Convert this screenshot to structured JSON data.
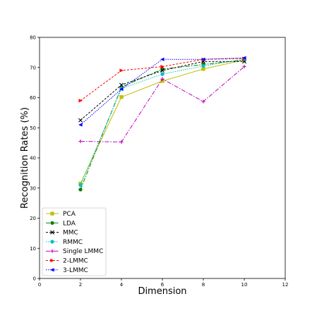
{
  "chart_data": {
    "type": "line",
    "title": "",
    "xlabel": "Dimension",
    "ylabel": "Recognition Rates (%)",
    "xlim": [
      0,
      12
    ],
    "ylim": [
      0,
      80
    ],
    "xticks": [
      0,
      2,
      4,
      6,
      8,
      10,
      12
    ],
    "yticks": [
      0,
      10,
      20,
      30,
      40,
      50,
      60,
      70,
      80
    ],
    "grid": false,
    "legend_position": "lower-left",
    "x": [
      2,
      4,
      6,
      8,
      10
    ],
    "series": [
      {
        "name": "PCA",
        "values": [
          31.5,
          60.2,
          65.5,
          69.5,
          72.5
        ],
        "color": "#bfbf00",
        "dash": "",
        "marker": "square"
      },
      {
        "name": "LDA",
        "values": [
          29.5,
          63.5,
          69.5,
          71.0,
          72.5
        ],
        "color": "#008000",
        "dash": "6,2,1.5,2",
        "marker": "circle"
      },
      {
        "name": "MMC",
        "values": [
          52.5,
          64.2,
          69.0,
          72.0,
          72.0
        ],
        "color": "#000000",
        "dash": "3,2",
        "marker": "x"
      },
      {
        "name": "RMMC",
        "values": [
          31.0,
          63.0,
          67.8,
          70.5,
          72.8
        ],
        "color": "#00bfbf",
        "dash": "1.5,1.5",
        "marker": "circle"
      },
      {
        "name": "Single LMMC",
        "values": [
          45.5,
          45.3,
          66.2,
          58.7,
          70.3
        ],
        "color": "#bf00bf",
        "dash": "6,2,1.5,2",
        "marker": "plus"
      },
      {
        "name": "2-LMMC",
        "values": [
          59.0,
          69.0,
          70.3,
          72.7,
          73.0
        ],
        "color": "#ff0000",
        "dash": "3,2",
        "marker": "triangle-right"
      },
      {
        "name": "3-LMMC",
        "values": [
          51.0,
          62.8,
          72.7,
          72.7,
          73.2
        ],
        "color": "#0000ff",
        "dash": "1.5,1.5",
        "marker": "triangle-left"
      }
    ]
  }
}
